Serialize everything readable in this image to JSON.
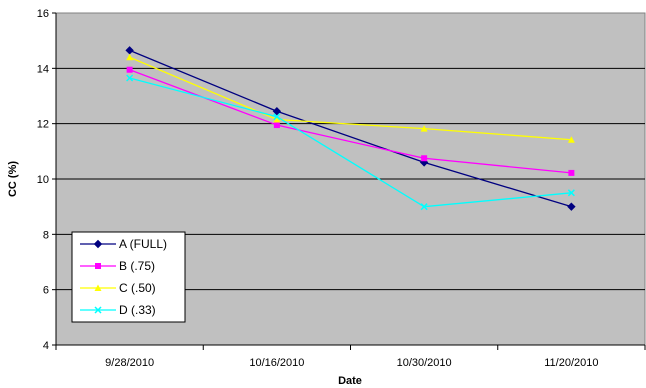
{
  "chart_data": {
    "type": "line",
    "title": "",
    "xlabel": "Date",
    "ylabel": "CC (%)",
    "categories": [
      "9/28/2010",
      "10/16/2010",
      "10/30/2010",
      "11/20/2010"
    ],
    "ylim": [
      4,
      16
    ],
    "yticks": [
      4,
      6,
      8,
      10,
      12,
      14,
      16
    ],
    "grid": true,
    "legend_position": "bottom-left",
    "plot_background": "#c0c0c0",
    "series": [
      {
        "name": "A (FULL)",
        "values": [
          14.65,
          12.45,
          10.6,
          9.0
        ],
        "color": "#000080",
        "marker": "diamond"
      },
      {
        "name": "B (.75)",
        "values": [
          13.95,
          11.95,
          10.75,
          10.22
        ],
        "color": "#ff00ff",
        "marker": "square"
      },
      {
        "name": "C (.50)",
        "values": [
          14.4,
          12.15,
          11.82,
          11.42
        ],
        "color": "#ffff00",
        "marker": "triangle"
      },
      {
        "name": "D (.33)",
        "values": [
          13.65,
          12.25,
          9.0,
          9.5
        ],
        "color": "#00ffff",
        "marker": "x"
      }
    ]
  }
}
